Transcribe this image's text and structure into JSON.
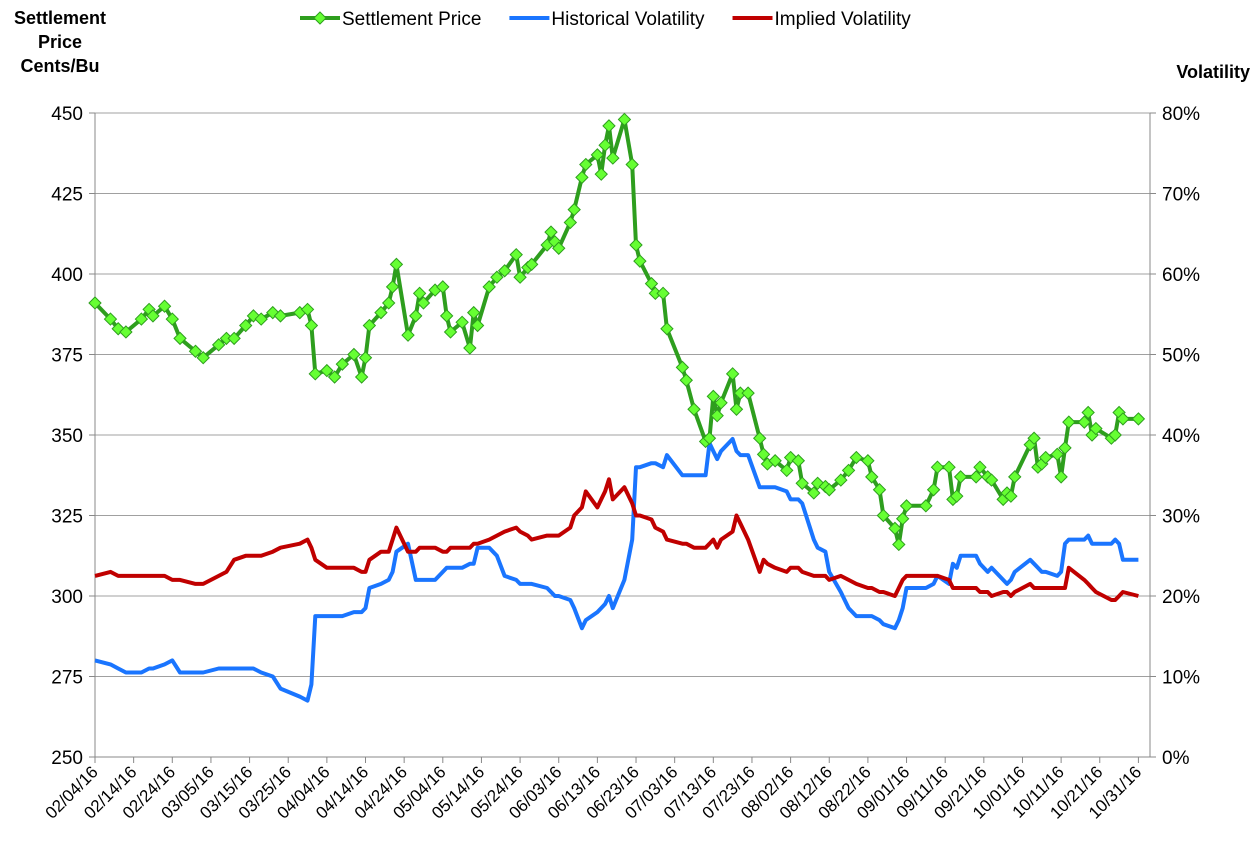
{
  "chart_data": {
    "type": "line",
    "y_label": "Settlement Price Cents/Bu",
    "y2_label": "Volatility",
    "legend": "top",
    "grid": true,
    "x": [
      "02/04/16",
      "02/08/16",
      "02/10/16",
      "02/12/16",
      "02/16/16",
      "02/18/16",
      "02/19/16",
      "02/22/16",
      "02/24/16",
      "02/26/16",
      "03/01/16",
      "03/03/16",
      "03/07/16",
      "03/09/16",
      "03/11/16",
      "03/14/16",
      "03/16/16",
      "03/18/16",
      "03/21/16",
      "03/23/16",
      "03/28/16",
      "03/30/16",
      "03/31/16",
      "04/01/16",
      "04/04/16",
      "04/06/16",
      "04/08/16",
      "04/11/16",
      "04/13/16",
      "04/14/16",
      "04/15/16",
      "04/18/16",
      "04/20/16",
      "04/21/16",
      "04/22/16",
      "04/25/16",
      "04/27/16",
      "04/28/16",
      "04/29/16",
      "05/02/16",
      "05/04/16",
      "05/05/16",
      "05/06/16",
      "05/09/16",
      "05/11/16",
      "05/12/16",
      "05/13/16",
      "05/16/16",
      "05/18/16",
      "05/20/16",
      "05/23/16",
      "05/24/16",
      "05/26/16",
      "05/27/16",
      "05/31/16",
      "06/01/16",
      "06/02/16",
      "06/03/16",
      "06/06/16",
      "06/07/16",
      "06/09/16",
      "06/10/16",
      "06/13/16",
      "06/14/16",
      "06/15/16",
      "06/16/16",
      "06/17/16",
      "06/20/16",
      "06/22/16",
      "06/23/16",
      "06/24/16",
      "06/27/16",
      "06/28/16",
      "06/30/16",
      "07/01/16",
      "07/05/16",
      "07/06/16",
      "07/08/16",
      "07/11/16",
      "07/12/16",
      "07/13/16",
      "07/14/16",
      "07/15/16",
      "07/18/16",
      "07/19/16",
      "07/20/16",
      "07/22/16",
      "07/25/16",
      "07/26/16",
      "07/27/16",
      "07/29/16",
      "08/01/16",
      "08/02/16",
      "08/04/16",
      "08/05/16",
      "08/08/16",
      "08/09/16",
      "08/11/16",
      "08/12/16",
      "08/15/16",
      "08/17/16",
      "08/19/16",
      "08/22/16",
      "08/23/16",
      "08/25/16",
      "08/26/16",
      "08/29/16",
      "08/30/16",
      "08/31/16",
      "09/01/16",
      "09/06/16",
      "09/08/16",
      "09/09/16",
      "09/12/16",
      "09/13/16",
      "09/14/16",
      "09/15/16",
      "09/19/16",
      "09/20/16",
      "09/22/16",
      "09/23/16",
      "09/26/16",
      "09/27/16",
      "09/28/16",
      "09/29/16",
      "10/03/16",
      "10/04/16",
      "10/05/16",
      "10/06/16",
      "10/07/16",
      "10/10/16",
      "10/11/16",
      "10/12/16",
      "10/13/16",
      "10/17/16",
      "10/18/16",
      "10/19/16",
      "10/20/16",
      "10/24/16",
      "10/25/16",
      "10/26/16",
      "10/27/16",
      "10/31/16"
    ],
    "series": [
      {
        "name": "Settlement Price",
        "color": "#2e9e1e",
        "marker_color": "#66ff33",
        "values": [
          391,
          386,
          383,
          382,
          386,
          389,
          387,
          390,
          386,
          380,
          376,
          374,
          378,
          380,
          380,
          384,
          387,
          386,
          388,
          387,
          388,
          389,
          384,
          369,
          370,
          368,
          372,
          375,
          368,
          374,
          384,
          388,
          391,
          396,
          403,
          381,
          387,
          394,
          391,
          395,
          396,
          387,
          382,
          385,
          377,
          388,
          384,
          396,
          399,
          401,
          406,
          399,
          402,
          403,
          409,
          413,
          410,
          408,
          416,
          420,
          430,
          434,
          437,
          431,
          440,
          446,
          436,
          448,
          434,
          409,
          404,
          397,
          394,
          394,
          383,
          371,
          367,
          358,
          348,
          349,
          362,
          356,
          360,
          369,
          358,
          363,
          363,
          349,
          344,
          341,
          342,
          339,
          343,
          342,
          335,
          332,
          335,
          334,
          333,
          336,
          339,
          343,
          342,
          337,
          333,
          325,
          321,
          316,
          324,
          328,
          328,
          333,
          340,
          340,
          330,
          331,
          337,
          337,
          340,
          337,
          336,
          330,
          332,
          331,
          337,
          347,
          349,
          340,
          341,
          343,
          344,
          337,
          346,
          354,
          354,
          357,
          350,
          352,
          349,
          350,
          357,
          355,
          355
        ]
      },
      {
        "name": "Historical Volatility",
        "color": "#1a75ff",
        "axis": "y2",
        "values": [
          12,
          11.5,
          11,
          10.5,
          10.5,
          11,
          11,
          11.5,
          12,
          10.5,
          10.5,
          10.5,
          11,
          11,
          11,
          11,
          11,
          10.5,
          10,
          8.5,
          7.5,
          7,
          9,
          17.5,
          17.5,
          17.5,
          17.5,
          18,
          18,
          18.5,
          21,
          21.5,
          22,
          23,
          25.5,
          26.5,
          22,
          22,
          22,
          22,
          23,
          23.5,
          23.5,
          23.5,
          24,
          24,
          26,
          26,
          25,
          22.5,
          22,
          21.5,
          21.5,
          21.5,
          21,
          20.5,
          20,
          20,
          19.5,
          18.5,
          16,
          17,
          18,
          18.5,
          19,
          20,
          18.5,
          22,
          27,
          36,
          36,
          36.5,
          36.5,
          36,
          37.5,
          35,
          35,
          35,
          35,
          39,
          38,
          37,
          38,
          39.5,
          38,
          37.5,
          37.5,
          33.5,
          33.5,
          33.5,
          33.5,
          33,
          32,
          32,
          31.5,
          27,
          26,
          25.5,
          23,
          20.5,
          18.5,
          17.5,
          17.5,
          17.5,
          17,
          16.5,
          16,
          17,
          18.5,
          21,
          21,
          21.5,
          22.5,
          21.5,
          24,
          23.5,
          25,
          25,
          24,
          23,
          23.5,
          22,
          21.5,
          22,
          23,
          24.5,
          24,
          23.5,
          23,
          23,
          22.5,
          23,
          26.5,
          27,
          27,
          27.5,
          26.5,
          26.5,
          26.5,
          27,
          26.5,
          24.5,
          24.5
        ]
      },
      {
        "name": "Implied Volatility",
        "color": "#c00000",
        "axis": "y2",
        "values": [
          22.5,
          23,
          22.5,
          22.5,
          22.5,
          22.5,
          22.5,
          22.5,
          22,
          22,
          21.5,
          21.5,
          22.5,
          23,
          24.5,
          25,
          25,
          25,
          25.5,
          26,
          26.5,
          27,
          26,
          24.5,
          23.5,
          23.5,
          23.5,
          23.5,
          23,
          23,
          24.5,
          25.5,
          25.5,
          27,
          28.5,
          25.5,
          25.5,
          26,
          26,
          26,
          25.5,
          25.5,
          26,
          26,
          26,
          26.5,
          26.5,
          27,
          27.5,
          28,
          28.5,
          28,
          27.5,
          27,
          27.5,
          27.5,
          27.5,
          27.5,
          28.5,
          30,
          31,
          33,
          31,
          32,
          33,
          34.5,
          32,
          33.5,
          31.5,
          30,
          30,
          29.5,
          28.5,
          28,
          27,
          26.5,
          26.5,
          26,
          26,
          26.5,
          27,
          26,
          27,
          28,
          30,
          29,
          27,
          23,
          24.5,
          24,
          23.5,
          23,
          23.5,
          23.5,
          23,
          22.5,
          22.5,
          22.5,
          22,
          22.5,
          22,
          21.5,
          21,
          21,
          20.5,
          20.5,
          20,
          21,
          22,
          22.5,
          22.5,
          22.5,
          22.5,
          22,
          21,
          21,
          21,
          21,
          20.5,
          20.5,
          20,
          20.5,
          20.5,
          20,
          20.5,
          21.5,
          21,
          21,
          21,
          21,
          21,
          21,
          21,
          23.5,
          22,
          21.5,
          21,
          20.5,
          19.5,
          19.5,
          20,
          20.5,
          20
        ]
      }
    ],
    "xlim": [
      "02/04/16",
      "11/03/16"
    ],
    "xticks": [
      "02/04/16",
      "02/14/16",
      "02/24/16",
      "03/05/16",
      "03/15/16",
      "03/25/16",
      "04/04/16",
      "04/14/16",
      "04/24/16",
      "05/04/16",
      "05/14/16",
      "05/24/16",
      "06/03/16",
      "06/13/16",
      "06/23/16",
      "07/03/16",
      "07/13/16",
      "07/23/16",
      "08/02/16",
      "08/12/16",
      "08/22/16",
      "09/01/16",
      "09/11/16",
      "09/21/16",
      "10/01/16",
      "10/11/16",
      "10/21/16",
      "10/31/16"
    ],
    "ylim": [
      250,
      450
    ],
    "yticks": [
      250,
      275,
      300,
      325,
      350,
      375,
      400,
      425,
      450
    ],
    "y2lim": [
      0,
      80
    ],
    "y2ticks": [
      {
        "value": 0,
        "label": "0%"
      },
      {
        "value": 10,
        "label": "10%"
      },
      {
        "value": 20,
        "label": "20%"
      },
      {
        "value": 30,
        "label": "30%"
      },
      {
        "value": 40,
        "label": "40%"
      },
      {
        "value": 50,
        "label": "50%"
      },
      {
        "value": 60,
        "label": "60%"
      },
      {
        "value": 70,
        "label": "70%"
      },
      {
        "value": 80,
        "label": "80%"
      }
    ]
  }
}
